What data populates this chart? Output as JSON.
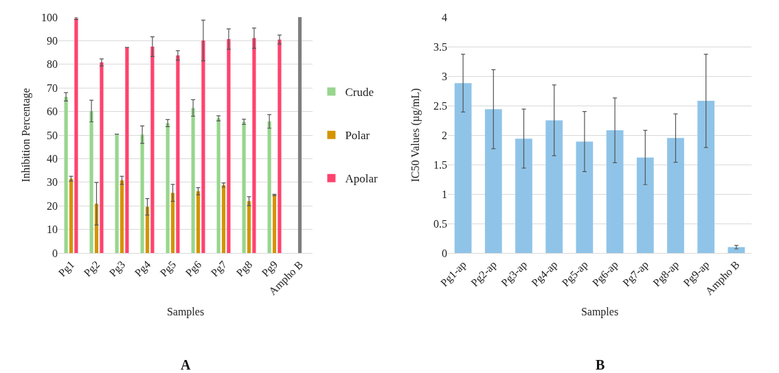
{
  "chart_data": [
    {
      "type": "bar",
      "xlabel": "Samples",
      "ylabel": "Inhibition Percentage",
      "categories": [
        "Pg1",
        "Pg2",
        "Pg3",
        "Pg4",
        "Pg5",
        "Pg6",
        "Pg7",
        "Pg8",
        "Pg9",
        "Ampho B"
      ],
      "ylim": [
        0,
        100
      ],
      "yticks": [
        0,
        10,
        20,
        30,
        40,
        50,
        60,
        70,
        80,
        90,
        100
      ],
      "grid": "y",
      "legend": "right",
      "annotations": [
        "A"
      ],
      "series": [
        {
          "name": "Crude",
          "color": "#98d68e",
          "values": [
            66.2,
            60.2,
            50.4,
            50.2,
            55.1,
            61.5,
            57.1,
            55.6,
            55.8,
            null
          ],
          "errors": [
            1.8,
            4.6,
            0,
            3.7,
            1.5,
            3.5,
            1.1,
            1.1,
            2.9,
            null
          ]
        },
        {
          "name": "Polar",
          "color": "#d49400",
          "values": [
            31.5,
            20.9,
            30.8,
            19.6,
            25.5,
            26.2,
            28.8,
            22.0,
            24.6,
            null
          ],
          "errors": [
            1,
            9,
            1.7,
            3.5,
            3.6,
            1.5,
            0.9,
            1.9,
            0.3,
            null
          ]
        },
        {
          "name": "Apolar",
          "color": "#ff436e",
          "values": [
            99.5,
            80.8,
            87.2,
            87.5,
            83.8,
            90.1,
            90.7,
            91.1,
            90.5,
            null
          ],
          "errors": [
            0.5,
            1.5,
            0,
            4.2,
            2,
            8.6,
            4.3,
            4.3,
            1.9,
            null
          ]
        },
        {
          "color": "#7f7f7f",
          "values": [
            null,
            null,
            null,
            null,
            null,
            null,
            null,
            null,
            null,
            100
          ]
        }
      ]
    },
    {
      "type": "bar",
      "xlabel": "Samples",
      "ylabel": "IC50 Values (µg/mL)",
      "categories": [
        "Pg1-ap",
        "Pg2-ap",
        "Pg3-ap",
        "Pg4-ap",
        "Pg5-ap",
        "Pg6-ap",
        "Pg7-ap",
        "Pg8-ap",
        "Pg9-ap",
        "Ampho B"
      ],
      "ylim": [
        0,
        4
      ],
      "yticks": [
        0,
        0.5,
        1,
        1.5,
        2,
        2.5,
        3,
        3.5,
        4
      ],
      "grid": "y",
      "legend": false,
      "annotations": [
        "B"
      ],
      "series": [
        {
          "color": "#8fc4e8",
          "values": [
            2.88,
            2.44,
            1.94,
            2.25,
            1.89,
            2.08,
            1.62,
            1.95,
            2.58,
            0.1
          ],
          "errors": [
            0.49,
            0.67,
            0.5,
            0.6,
            0.51,
            0.55,
            0.46,
            0.41,
            0.79,
            0.03
          ]
        }
      ]
    }
  ]
}
